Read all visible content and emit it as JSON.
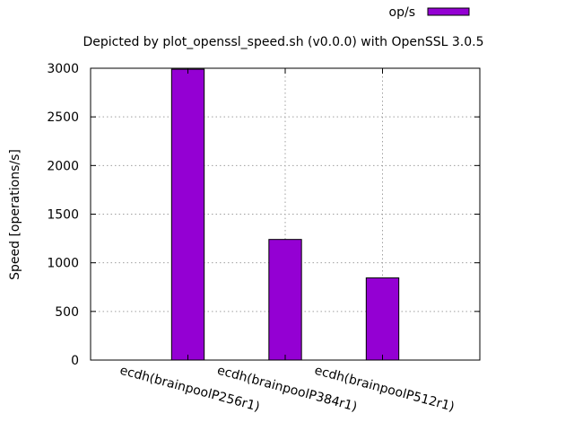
{
  "chart_data": {
    "type": "bar",
    "title": "Depicted by plot_openssl_speed.sh (v0.0.0) with OpenSSL 3.0.5",
    "xlabel": "",
    "ylabel": "Speed [operations/s]",
    "categories": [
      "ecdh(brainpoolP256r1)",
      "ecdh(brainpoolP384r1)",
      "ecdh(brainpoolP512r1)"
    ],
    "series": [
      {
        "name": "op/s",
        "values": [
          2990,
          1240,
          845
        ]
      }
    ],
    "ylim": [
      0,
      3000
    ],
    "yticks": [
      0,
      500,
      1000,
      1500,
      2000,
      2500,
      3000
    ],
    "ytick_labels": [
      "0",
      "500",
      "1000",
      "1500",
      "2000",
      "2500",
      "3000"
    ],
    "grid": true,
    "legend": "top-right",
    "colors": {
      "bar": "#9400d3",
      "grid": "#a0a0a0",
      "axis": "#000000"
    }
  }
}
